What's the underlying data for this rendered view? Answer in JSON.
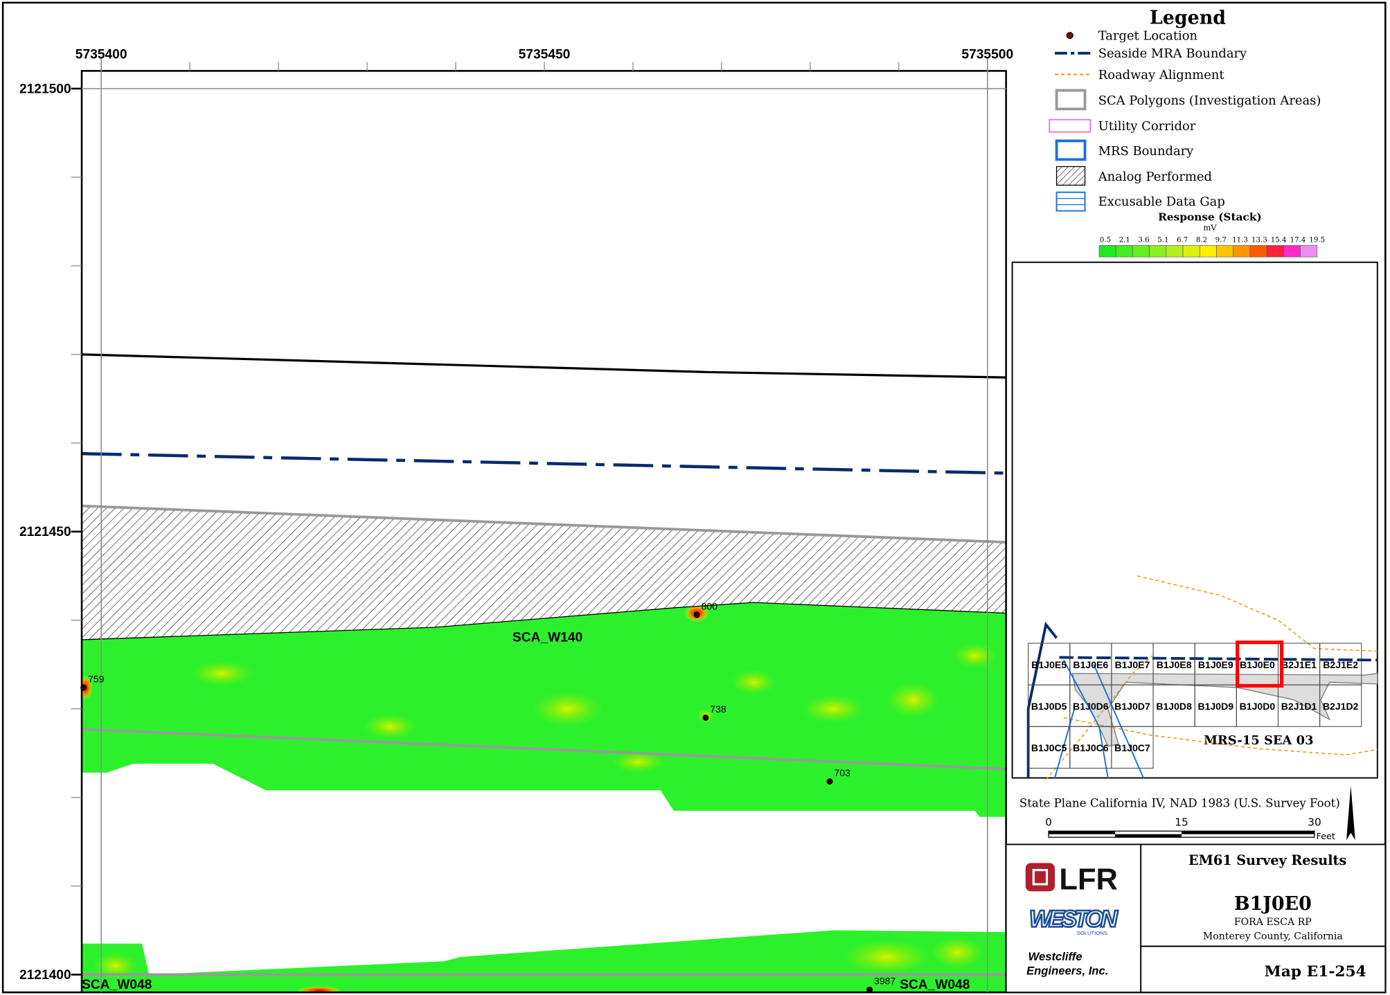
{
  "map": {
    "x_ticks": [
      "5735400",
      "5735450",
      "5735500"
    ],
    "y_ticks": [
      "2121500",
      "2121450",
      "2121400"
    ],
    "area_labels": [
      "SCA_W140",
      "SCA_W048",
      "SCA_W048"
    ],
    "targets": [
      "800",
      "759",
      "738",
      "703",
      "3987"
    ]
  },
  "legend": {
    "title": "Legend",
    "items": [
      "Target Location",
      "Seaside MRA Boundary",
      "Roadway Alignment",
      "SCA Polygons (Investigation Areas)",
      "Utility Corridor",
      "MRS Boundary",
      "Analog Performed",
      "Excusable Data Gap"
    ],
    "response_title": "Response (Stack)",
    "response_unit": "mV",
    "response_scale": [
      "0.5",
      "2.1",
      "3.6",
      "5.1",
      "6.7",
      "8.2",
      "9.7",
      "11.3",
      "13.3",
      "15.4",
      "17.4",
      "19.5"
    ]
  },
  "inset": {
    "rows": [
      [
        "B1J0E5",
        "B1J0E6",
        "B1J0E7",
        "B1J0E8",
        "B1J0E9",
        "B1J0E0",
        "B2J1E1",
        "B2J1E2"
      ],
      [
        "B1J0D5",
        "B1J0D6",
        "B1J0D7",
        "B1J0D8",
        "B1J0D9",
        "B1J0D0",
        "B2J1D1",
        "B2J1D2"
      ],
      [
        "B1J0C5",
        "B1J0C6",
        "B1J0C7"
      ]
    ],
    "area_label": "MRS-15 SEA 03"
  },
  "projection": "State Plane California IV, NAD 1983 (U.S. Survey Foot)",
  "scale_bar": {
    "labels": [
      "0",
      "15",
      "30"
    ],
    "unit": "Feet"
  },
  "title_block": {
    "logo_1": "LFR",
    "logo_2": "WESTON",
    "logo_2_sub": "SOLUTIONS",
    "company_line_1": "Westcliffe",
    "company_line_2": "Engineers, Inc.",
    "title": "EM61 Survey Results",
    "grid": "B1J0E0",
    "project": "FORA ESCA RP",
    "location": "Monterey County, California",
    "map_number": "Map E1-254"
  }
}
